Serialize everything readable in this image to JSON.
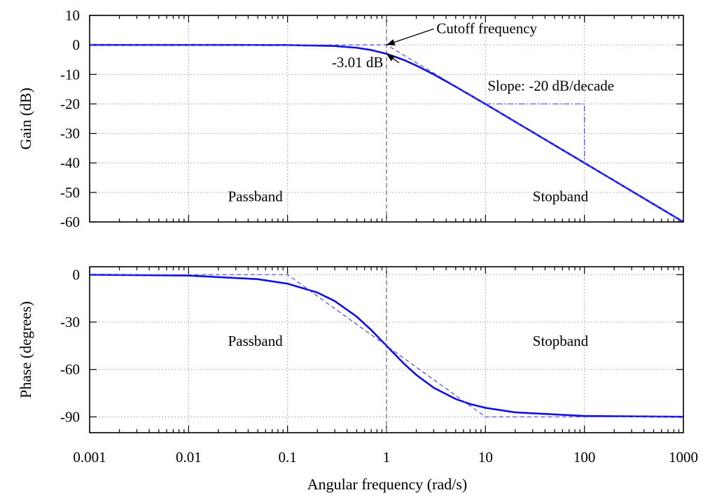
{
  "chart_data": {
    "type": "line",
    "title": "",
    "xlabel": "Angular frequency (rad/s)",
    "xscale": "log",
    "xlim": [
      0.001,
      1000
    ],
    "x_tick_labels": [
      "0.001",
      "0.01",
      "0.1",
      "1",
      "10",
      "100",
      "1000"
    ],
    "cutoff_frequency": 1,
    "colors": {
      "curve": "#1010e0",
      "asymptote": "#4a4af0",
      "cutoff_line": "#707070"
    },
    "panels": [
      {
        "name": "gain",
        "ylabel": "Gain (dB)",
        "ylim": [
          -60,
          10
        ],
        "y_ticks": [
          10,
          0,
          -10,
          -20,
          -30,
          -40,
          -50,
          -60
        ],
        "series": [
          {
            "name": "Gain response",
            "style": "solid",
            "x": [
              0.001,
              0.01,
              0.1,
              0.3,
              0.5,
              0.7,
              1,
              1.5,
              2,
              3,
              5,
              10,
              100,
              1000
            ],
            "y": [
              0,
              0,
              -0.04,
              -0.37,
              -0.97,
              -1.73,
              -3.01,
              -5.12,
              -6.99,
              -10,
              -14.15,
              -20.04,
              -40,
              -60
            ]
          },
          {
            "name": "Asymptote",
            "style": "dashed",
            "x": [
              0.001,
              1,
              1000
            ],
            "y": [
              0,
              0,
              -60
            ]
          },
          {
            "name": "Slope indicator",
            "style": "dashdot",
            "x": [
              10,
              100,
              100
            ],
            "y": [
              -20,
              -20,
              -40
            ]
          }
        ],
        "annotations": [
          {
            "text": "Cutoff frequency",
            "x": 3.2,
            "y": 4,
            "arrow_to": [
              1,
              0
            ]
          },
          {
            "text": "-3.01 dB",
            "x": 0.28,
            "y": -7.5,
            "arrow_to": [
              1,
              -3.01
            ]
          },
          {
            "text": "Slope: -20 dB/decade",
            "x": 10.5,
            "y": -15.5
          },
          {
            "text": "Passband",
            "x": 0.025,
            "y": -53
          },
          {
            "text": "Stopband",
            "x": 30,
            "y": -53
          }
        ]
      },
      {
        "name": "phase",
        "ylabel": "Phase (degrees)",
        "ylim": [
          -100,
          5
        ],
        "y_ticks": [
          0,
          -30,
          -60,
          -90
        ],
        "series": [
          {
            "name": "Phase response",
            "style": "solid",
            "x": [
              0.001,
              0.01,
              0.05,
              0.1,
              0.2,
              0.3,
              0.5,
              0.7,
              1,
              1.5,
              2,
              3,
              5,
              7,
              10,
              20,
              100,
              1000
            ],
            "y": [
              -0.06,
              -0.57,
              -2.86,
              -5.71,
              -11.31,
              -16.7,
              -26.57,
              -34.99,
              -45,
              -56.31,
              -63.43,
              -71.57,
              -78.69,
              -81.87,
              -84.29,
              -87.14,
              -89.43,
              -89.94
            ]
          },
          {
            "name": "Asymptote",
            "style": "dashed",
            "x": [
              0.001,
              0.1,
              10,
              1000
            ],
            "y": [
              0,
              0,
              -90,
              -90
            ]
          }
        ],
        "annotations": [
          {
            "text": "Passband",
            "x": 0.025,
            "y": -45
          },
          {
            "text": "Stopband",
            "x": 30,
            "y": -45
          }
        ]
      }
    ]
  }
}
